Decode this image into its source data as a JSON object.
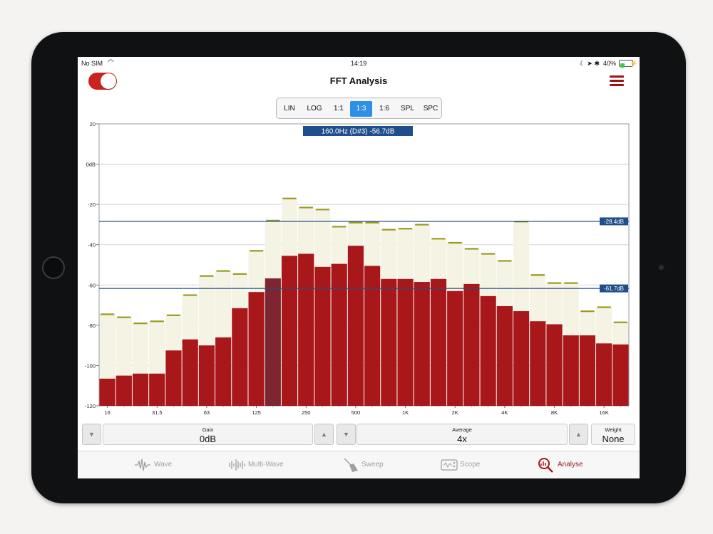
{
  "status": {
    "carrier": "No SIM",
    "time": "14:19",
    "battery": "40%",
    "battery_level": 0.4
  },
  "header": {
    "title": "FFT Analysis",
    "toggle_on": true
  },
  "segments": [
    "LIN",
    "LOG",
    "1:1",
    "1:3",
    "1:6",
    "SPL",
    "SPC"
  ],
  "selected_segment": "1:3",
  "chart_data": {
    "type": "bar",
    "x_scale": "log",
    "readout": "160.0Hz (D#3) -56.7dB",
    "selected_band": "160",
    "ylim": [
      -120,
      20
    ],
    "y_ticks": [
      "20",
      "0dB",
      "-20",
      "-40",
      "-60",
      "-80",
      "-100",
      "-120"
    ],
    "x_tick_labels": [
      "16",
      "31.5",
      "63",
      "125",
      "250",
      "500",
      "1K",
      "2K",
      "4K",
      "8K",
      "16K"
    ],
    "grid": true,
    "markers": [
      {
        "label": "-28.4dB",
        "value": -28.4
      },
      {
        "label": "-61.7dB",
        "value": -61.7
      }
    ],
    "series": [
      {
        "name": "level",
        "color": "#a8181a",
        "values": [
          -106.5,
          -105,
          -104,
          -104,
          -92.5,
          -87,
          -90,
          -86,
          -71.5,
          -63.5,
          -56.7,
          -45.5,
          -44.5,
          -51,
          -49.5,
          -40.5,
          -50.5,
          -57,
          -57,
          -58.5,
          -57,
          -63,
          -59.5,
          -65.5,
          -70.5,
          -73,
          -78,
          -79.5,
          -85,
          -85,
          -89,
          -89.5
        ]
      },
      {
        "name": "peak",
        "color": "#f4f3e4",
        "marker_color": "#9a9a1e",
        "values": [
          -74.5,
          -76,
          -79,
          -78,
          -75,
          -65,
          -55.5,
          -53,
          -54.5,
          -43,
          -28,
          -17,
          -21.5,
          -22.5,
          -31,
          -29,
          -29,
          -32.5,
          -32,
          -30,
          -37,
          -39,
          -42,
          -44.5,
          -48,
          -28.5,
          -55,
          -59,
          -59,
          -73,
          -71,
          -78.5
        ]
      }
    ]
  },
  "controls": {
    "gain_label": "Gain",
    "gain_value": "0dB",
    "average_label": "Average",
    "average_value": "4x",
    "weight_label": "Weight",
    "weight_value": "None"
  },
  "tabs": [
    {
      "label": "Wave",
      "icon": "waveform-icon"
    },
    {
      "label": "Multi-Wave",
      "icon": "multi-waveform-icon"
    },
    {
      "label": "Sweep",
      "icon": "sweep-brush-icon"
    },
    {
      "label": "Scope",
      "icon": "oscilloscope-icon"
    },
    {
      "label": "Analyse",
      "icon": "analyse-magnifier-icon"
    }
  ],
  "active_tab": "Analyse",
  "colors": {
    "accent_red": "#a8181a",
    "marker_blue": "#1f4f8a",
    "segment_active": "#2f8ee6",
    "toggle_on": "#c9241c"
  }
}
